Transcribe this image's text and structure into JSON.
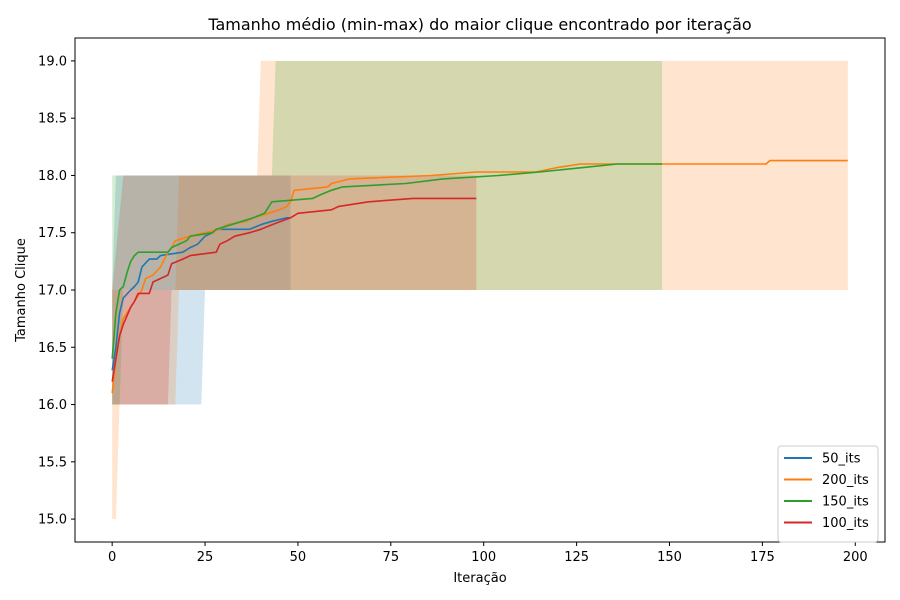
{
  "chart_data": {
    "type": "line",
    "title": "Tamanho médio (min-max) do maior clique encontrado por iteração",
    "xlabel": "Iteração",
    "ylabel": "Tamanho Clique",
    "xlim": [
      -10,
      208
    ],
    "ylim": [
      14.8,
      19.2
    ],
    "xticks": [
      0,
      25,
      50,
      75,
      100,
      125,
      150,
      175,
      200
    ],
    "yticks": [
      15.0,
      15.5,
      16.0,
      16.5,
      17.0,
      17.5,
      18.0,
      18.5,
      19.0
    ],
    "legend_position": "lower-right",
    "grid": false,
    "series": [
      {
        "name": "50_its",
        "color": "#1f77b4",
        "mean": [
          [
            0,
            16.3
          ],
          [
            1,
            16.5
          ],
          [
            2,
            16.8
          ],
          [
            3,
            16.93
          ],
          [
            5,
            17.0
          ],
          [
            6,
            17.03
          ],
          [
            7,
            17.07
          ],
          [
            8,
            17.2
          ],
          [
            10,
            17.27
          ],
          [
            12,
            17.27
          ],
          [
            13,
            17.3
          ],
          [
            19,
            17.33
          ],
          [
            21,
            17.37
          ],
          [
            23,
            17.4
          ],
          [
            25,
            17.47
          ],
          [
            27,
            17.5
          ],
          [
            28,
            17.53
          ],
          [
            37,
            17.53
          ],
          [
            40,
            17.57
          ],
          [
            43,
            17.6
          ],
          [
            47,
            17.63
          ],
          [
            48,
            17.63
          ]
        ],
        "band": [
          [
            0,
            16.0,
            17.0
          ],
          [
            1,
            16.0,
            18.0
          ],
          [
            3,
            16.0,
            18.0
          ],
          [
            4,
            16.0,
            18.0
          ],
          [
            24,
            16.0,
            18.0
          ],
          [
            25,
            17.0,
            18.0
          ],
          [
            48,
            17.0,
            18.0
          ]
        ]
      },
      {
        "name": "200_its",
        "color": "#ff7f0e",
        "mean": [
          [
            0,
            16.1
          ],
          [
            1,
            16.4
          ],
          [
            2,
            16.6
          ],
          [
            3,
            16.75
          ],
          [
            5,
            16.85
          ],
          [
            6,
            16.9
          ],
          [
            8,
            17.0
          ],
          [
            9,
            17.1
          ],
          [
            11,
            17.13
          ],
          [
            13,
            17.2
          ],
          [
            15,
            17.33
          ],
          [
            16,
            17.37
          ],
          [
            17,
            17.43
          ],
          [
            21,
            17.47
          ],
          [
            25,
            17.5
          ],
          [
            29,
            17.53
          ],
          [
            31,
            17.57
          ],
          [
            36,
            17.6
          ],
          [
            38,
            17.63
          ],
          [
            42,
            17.67
          ],
          [
            45,
            17.7
          ],
          [
            47,
            17.73
          ],
          [
            48,
            17.77
          ],
          [
            49,
            17.87
          ],
          [
            58,
            17.9
          ],
          [
            59,
            17.93
          ],
          [
            64,
            17.97
          ],
          [
            86,
            18.0
          ],
          [
            98,
            18.03
          ],
          [
            114,
            18.03
          ],
          [
            120,
            18.07
          ],
          [
            126,
            18.1
          ],
          [
            176,
            18.1
          ],
          [
            177,
            18.13
          ],
          [
            198,
            18.13
          ]
        ],
        "band": [
          [
            0,
            15.0,
            17.0
          ],
          [
            1,
            15.0,
            17.0
          ],
          [
            2,
            16.0,
            17.0
          ],
          [
            17,
            16.0,
            17.0
          ],
          [
            18,
            17.0,
            18.0
          ],
          [
            39,
            17.0,
            18.0
          ],
          [
            40,
            17.0,
            19.0
          ],
          [
            198,
            17.0,
            19.0
          ]
        ]
      },
      {
        "name": "150_its",
        "color": "#2ca02c",
        "mean": [
          [
            0,
            16.4
          ],
          [
            1,
            16.8
          ],
          [
            2,
            17.0
          ],
          [
            3,
            17.03
          ],
          [
            4,
            17.15
          ],
          [
            5,
            17.25
          ],
          [
            6,
            17.3
          ],
          [
            7,
            17.33
          ],
          [
            15,
            17.33
          ],
          [
            16,
            17.37
          ],
          [
            20,
            17.43
          ],
          [
            21,
            17.47
          ],
          [
            27,
            17.5
          ],
          [
            28,
            17.53
          ],
          [
            35,
            17.6
          ],
          [
            38,
            17.63
          ],
          [
            41,
            17.67
          ],
          [
            43,
            17.77
          ],
          [
            54,
            17.8
          ],
          [
            56,
            17.83
          ],
          [
            59,
            17.87
          ],
          [
            62,
            17.9
          ],
          [
            79,
            17.93
          ],
          [
            89,
            17.97
          ],
          [
            104,
            18.0
          ],
          [
            115,
            18.03
          ],
          [
            127,
            18.07
          ],
          [
            136,
            18.1
          ],
          [
            148,
            18.1
          ]
        ],
        "band": [
          [
            0,
            16.0,
            18.0
          ],
          [
            2,
            16.0,
            18.0
          ],
          [
            3,
            17.0,
            18.0
          ],
          [
            16,
            17.0,
            18.0
          ],
          [
            17,
            17.0,
            18.0
          ],
          [
            19,
            17.0,
            18.0
          ],
          [
            20,
            17.0,
            18.0
          ],
          [
            43,
            17.0,
            18.0
          ],
          [
            44,
            17.0,
            19.0
          ],
          [
            148,
            17.0,
            19.0
          ]
        ]
      },
      {
        "name": "100_its",
        "color": "#d62728",
        "mean": [
          [
            0,
            16.2
          ],
          [
            1,
            16.4
          ],
          [
            2,
            16.6
          ],
          [
            3,
            16.7
          ],
          [
            5,
            16.85
          ],
          [
            6,
            16.9
          ],
          [
            7,
            16.97
          ],
          [
            10,
            16.97
          ],
          [
            11,
            17.07
          ],
          [
            13,
            17.1
          ],
          [
            15,
            17.13
          ],
          [
            16,
            17.23
          ],
          [
            19,
            17.27
          ],
          [
            21,
            17.3
          ],
          [
            28,
            17.33
          ],
          [
            29,
            17.4
          ],
          [
            31,
            17.43
          ],
          [
            33,
            17.47
          ],
          [
            37,
            17.5
          ],
          [
            40,
            17.53
          ],
          [
            43,
            17.57
          ],
          [
            48,
            17.63
          ],
          [
            50,
            17.67
          ],
          [
            59,
            17.7
          ],
          [
            61,
            17.73
          ],
          [
            69,
            17.77
          ],
          [
            81,
            17.8
          ],
          [
            98,
            17.8
          ]
        ],
        "band": [
          [
            0,
            16.0,
            17.0
          ],
          [
            3,
            16.0,
            18.0
          ],
          [
            15,
            16.0,
            18.0
          ],
          [
            16,
            17.0,
            18.0
          ],
          [
            47,
            17.0,
            18.0
          ],
          [
            48,
            17.0,
            18.0
          ],
          [
            98,
            17.0,
            18.0
          ]
        ]
      }
    ]
  }
}
